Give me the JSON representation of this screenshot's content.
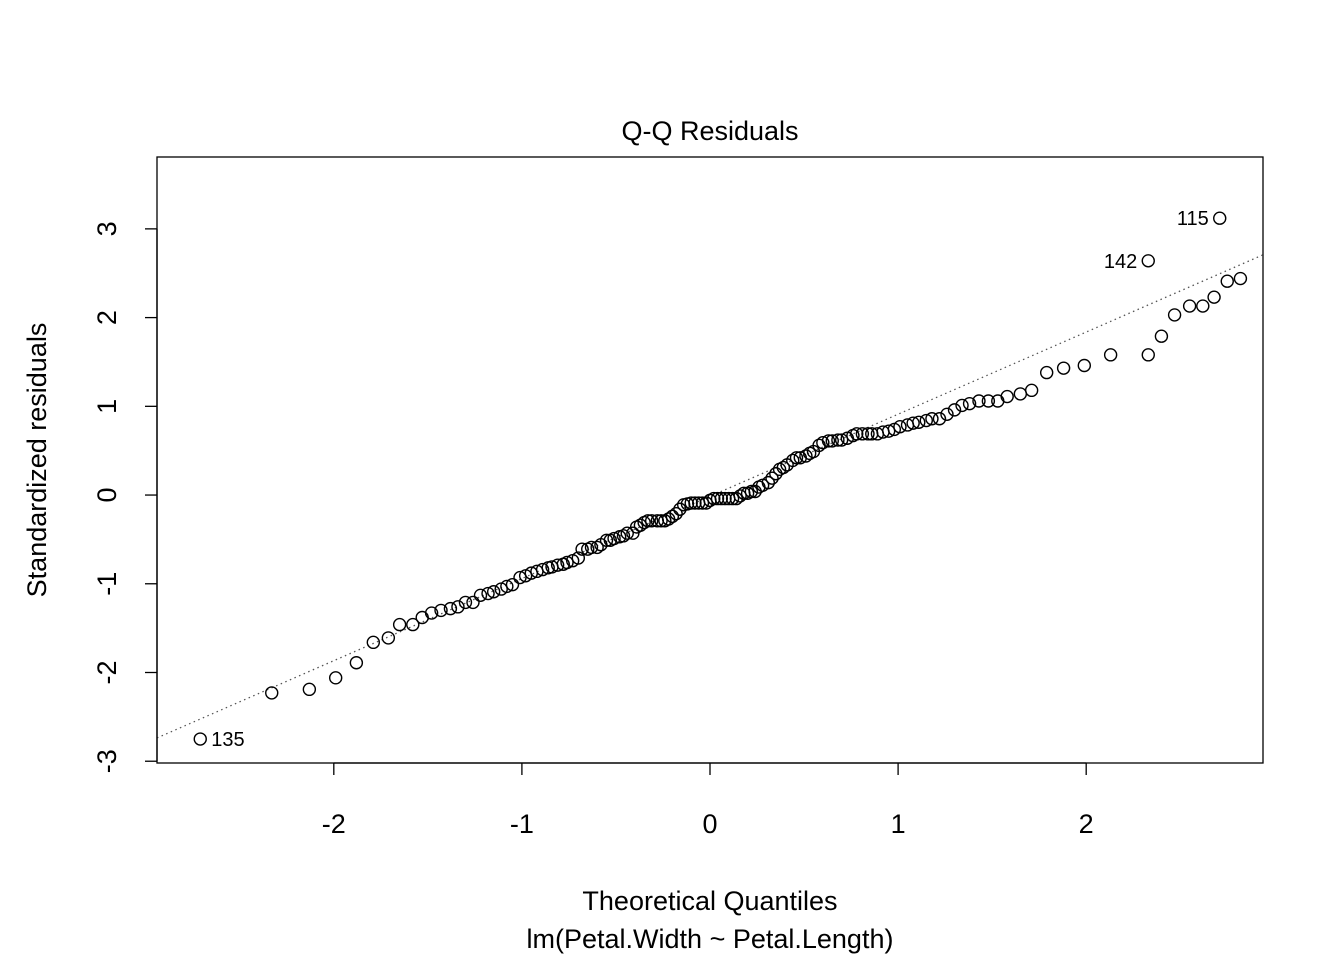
{
  "chart_data": {
    "type": "scatter",
    "title": "Q-Q Residuals",
    "xlabel": "Theoretical Quantiles",
    "subtitle": "lm(Petal.Width ~ Petal.Length)",
    "ylabel": "Standardized residuals",
    "xlim": [
      -2.94,
      2.94
    ],
    "ylim": [
      -3.02,
      3.81
    ],
    "x_ticks": [
      -2,
      -1,
      0,
      1,
      2
    ],
    "x_tick_labels": [
      "-2",
      "-1",
      "0",
      "1",
      "2"
    ],
    "y_ticks": [
      -3,
      -2,
      -1,
      0,
      1,
      2,
      3
    ],
    "y_tick_labels": [
      "-3",
      "-2",
      "-1",
      "0",
      "1",
      "2",
      "3"
    ],
    "grid": false,
    "reference_line": {
      "style": "dotted",
      "intercept": -0.015,
      "slope": 0.926
    },
    "labeled_points": [
      {
        "label": "115",
        "x": 2.71,
        "y": 3.12,
        "side": "left"
      },
      {
        "label": "142",
        "x": 2.33,
        "y": 2.64,
        "side": "left"
      },
      {
        "label": "135",
        "x": -2.71,
        "y": -2.75,
        "side": "right"
      }
    ],
    "points": [
      [
        -2.71,
        -2.75
      ],
      [
        -2.33,
        -2.23
      ],
      [
        -2.13,
        -2.19
      ],
      [
        -1.99,
        -2.06
      ],
      [
        -1.88,
        -1.89
      ],
      [
        -1.79,
        -1.66
      ],
      [
        -1.71,
        -1.61
      ],
      [
        -1.65,
        -1.46
      ],
      [
        -1.58,
        -1.46
      ],
      [
        -1.53,
        -1.38
      ],
      [
        -1.48,
        -1.33
      ],
      [
        -1.43,
        -1.3
      ],
      [
        -1.38,
        -1.28
      ],
      [
        -1.34,
        -1.26
      ],
      [
        -1.3,
        -1.21
      ],
      [
        -1.26,
        -1.21
      ],
      [
        -1.22,
        -1.13
      ],
      [
        -1.18,
        -1.11
      ],
      [
        -1.15,
        -1.09
      ],
      [
        -1.11,
        -1.06
      ],
      [
        -1.08,
        -1.03
      ],
      [
        -1.05,
        -1.01
      ],
      [
        -1.01,
        -0.93
      ],
      [
        -0.98,
        -0.91
      ],
      [
        -0.95,
        -0.88
      ],
      [
        -0.92,
        -0.86
      ],
      [
        -0.89,
        -0.84
      ],
      [
        -0.86,
        -0.82
      ],
      [
        -0.84,
        -0.81
      ],
      [
        -0.81,
        -0.79
      ],
      [
        -0.78,
        -0.78
      ],
      [
        -0.76,
        -0.76
      ],
      [
        -0.73,
        -0.74
      ],
      [
        -0.7,
        -0.71
      ],
      [
        -0.68,
        -0.61
      ],
      [
        -0.65,
        -0.61
      ],
      [
        -0.63,
        -0.59
      ],
      [
        -0.6,
        -0.59
      ],
      [
        -0.58,
        -0.56
      ],
      [
        -0.55,
        -0.51
      ],
      [
        -0.53,
        -0.51
      ],
      [
        -0.51,
        -0.49
      ],
      [
        -0.48,
        -0.47
      ],
      [
        -0.46,
        -0.46
      ],
      [
        -0.44,
        -0.43
      ],
      [
        -0.41,
        -0.43
      ],
      [
        -0.39,
        -0.36
      ],
      [
        -0.37,
        -0.34
      ],
      [
        -0.35,
        -0.31
      ],
      [
        -0.33,
        -0.29
      ],
      [
        -0.31,
        -0.29
      ],
      [
        -0.28,
        -0.29
      ],
      [
        -0.26,
        -0.29
      ],
      [
        -0.24,
        -0.29
      ],
      [
        -0.22,
        -0.27
      ],
      [
        -0.2,
        -0.24
      ],
      [
        -0.18,
        -0.21
      ],
      [
        -0.16,
        -0.16
      ],
      [
        -0.14,
        -0.11
      ],
      [
        -0.12,
        -0.1
      ],
      [
        -0.1,
        -0.09
      ],
      [
        -0.08,
        -0.09
      ],
      [
        -0.06,
        -0.09
      ],
      [
        -0.04,
        -0.09
      ],
      [
        -0.02,
        -0.09
      ],
      [
        0.0,
        -0.06
      ],
      [
        0.02,
        -0.04
      ],
      [
        0.04,
        -0.04
      ],
      [
        0.06,
        -0.04
      ],
      [
        0.08,
        -0.04
      ],
      [
        0.1,
        -0.04
      ],
      [
        0.12,
        -0.04
      ],
      [
        0.14,
        -0.04
      ],
      [
        0.16,
        -0.01
      ],
      [
        0.18,
        0.02
      ],
      [
        0.2,
        0.02
      ],
      [
        0.22,
        0.04
      ],
      [
        0.24,
        0.04
      ],
      [
        0.26,
        0.09
      ],
      [
        0.28,
        0.11
      ],
      [
        0.31,
        0.14
      ],
      [
        0.33,
        0.19
      ],
      [
        0.35,
        0.24
      ],
      [
        0.37,
        0.29
      ],
      [
        0.39,
        0.31
      ],
      [
        0.41,
        0.34
      ],
      [
        0.44,
        0.39
      ],
      [
        0.46,
        0.42
      ],
      [
        0.48,
        0.42
      ],
      [
        0.51,
        0.44
      ],
      [
        0.53,
        0.47
      ],
      [
        0.55,
        0.49
      ],
      [
        0.58,
        0.56
      ],
      [
        0.6,
        0.59
      ],
      [
        0.63,
        0.61
      ],
      [
        0.65,
        0.61
      ],
      [
        0.68,
        0.62
      ],
      [
        0.7,
        0.62
      ],
      [
        0.73,
        0.64
      ],
      [
        0.76,
        0.67
      ],
      [
        0.78,
        0.69
      ],
      [
        0.81,
        0.69
      ],
      [
        0.84,
        0.69
      ],
      [
        0.86,
        0.69
      ],
      [
        0.89,
        0.69
      ],
      [
        0.92,
        0.71
      ],
      [
        0.95,
        0.72
      ],
      [
        0.98,
        0.74
      ],
      [
        1.01,
        0.77
      ],
      [
        1.05,
        0.79
      ],
      [
        1.08,
        0.81
      ],
      [
        1.11,
        0.82
      ],
      [
        1.15,
        0.84
      ],
      [
        1.18,
        0.86
      ],
      [
        1.22,
        0.86
      ],
      [
        1.26,
        0.91
      ],
      [
        1.3,
        0.96
      ],
      [
        1.34,
        1.01
      ],
      [
        1.38,
        1.03
      ],
      [
        1.43,
        1.06
      ],
      [
        1.48,
        1.06
      ],
      [
        1.53,
        1.06
      ],
      [
        1.58,
        1.11
      ],
      [
        1.65,
        1.14
      ],
      [
        1.71,
        1.18
      ],
      [
        1.79,
        1.38
      ],
      [
        1.88,
        1.43
      ],
      [
        1.99,
        1.46
      ],
      [
        2.13,
        1.58
      ],
      [
        2.33,
        1.58
      ],
      [
        2.4,
        1.79
      ],
      [
        2.47,
        2.03
      ],
      [
        2.55,
        2.13
      ],
      [
        2.62,
        2.13
      ],
      [
        2.68,
        2.23
      ],
      [
        2.75,
        2.41
      ],
      [
        2.82,
        2.44
      ],
      [
        2.33,
        2.64
      ],
      [
        2.71,
        3.12
      ]
    ]
  }
}
